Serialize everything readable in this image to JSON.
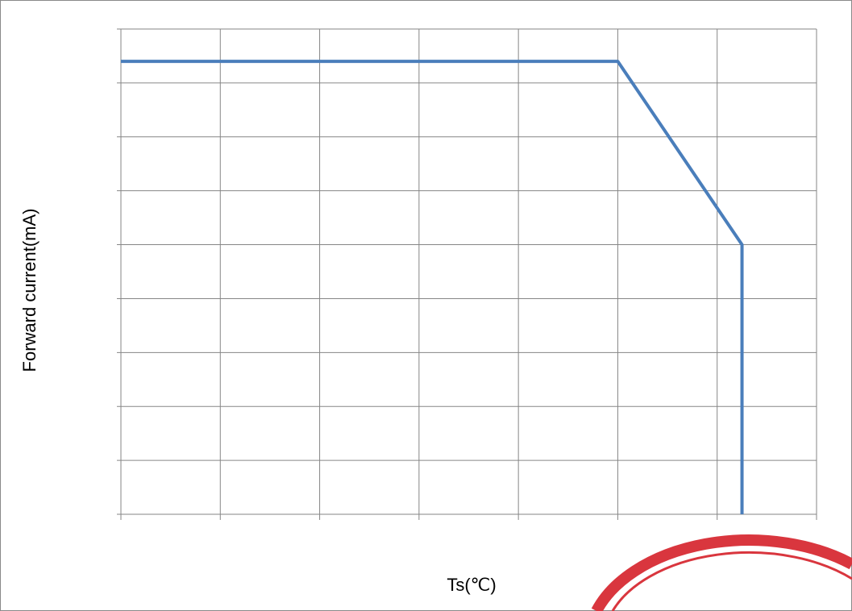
{
  "chart_data": {
    "type": "line",
    "x_label": "Ts(℃)",
    "y_label": "Forward current(mA)",
    "x": [
      0,
      5,
      6.25,
      6.25
    ],
    "series": [
      {
        "color": "#4a7ebb",
        "values": [
          8.4,
          8.4,
          5,
          0
        ]
      }
    ],
    "xlim": [
      0,
      7
    ],
    "ylim": [
      0,
      9
    ],
    "xticks": [
      0,
      1,
      2,
      3,
      4,
      5,
      6,
      7
    ],
    "yticks": [
      0,
      1,
      2,
      3,
      4,
      5,
      6,
      7,
      8,
      9
    ],
    "grid": true
  }
}
